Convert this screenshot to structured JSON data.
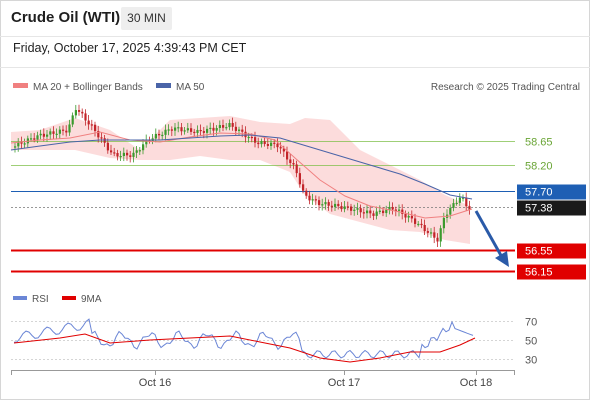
{
  "header": {
    "title": "Crude Oil (WTI)",
    "timeframe": "30 MIN",
    "timestamp": "Friday, October 17, 2025 4:39:43 PM CET"
  },
  "legend": {
    "ma20_label": "MA 20 + Bollinger Bands",
    "ma50_label": "MA 50",
    "credit": "Research © 2025 Trading Central",
    "rsi_label": "RSI",
    "rsi_ma_label": "9MA",
    "ma20_color": "#f08080",
    "ma50_color": "#4a64a8"
  },
  "chart_data": [
    {
      "type": "candlestick",
      "x_ticks": [
        "Oct 16",
        "Oct 17",
        "Oct 18"
      ],
      "price_levels": [
        {
          "value": 58.65,
          "label": "58.65",
          "kind": "resistance",
          "color": "#7fbf4a"
        },
        {
          "value": 58.2,
          "label": "58.20",
          "kind": "resistance",
          "color": "#7fbf4a"
        },
        {
          "value": 57.7,
          "label": "57.70",
          "kind": "pivot",
          "color": "#1e5fb4"
        },
        {
          "value": 57.38,
          "label": "57.38",
          "kind": "last_price",
          "color": "#222222"
        },
        {
          "value": 56.55,
          "label": "56.55",
          "kind": "support",
          "color": "#e00000"
        },
        {
          "value": 56.15,
          "label": "56.15",
          "kind": "support",
          "color": "#e00000"
        }
      ],
      "ylim": [
        56.0,
        59.0
      ],
      "annotation": {
        "type": "arrow",
        "direction": "down",
        "from": 57.38,
        "to": 56.15,
        "color": "#2a5aa8"
      },
      "ma20_color": "#f08080",
      "ma50_color": "#4a64a8"
    },
    {
      "type": "line",
      "series_names": [
        "RSI",
        "9MA"
      ],
      "y_ticks": [
        70,
        50,
        30
      ],
      "ylim": [
        20,
        80
      ]
    }
  ]
}
